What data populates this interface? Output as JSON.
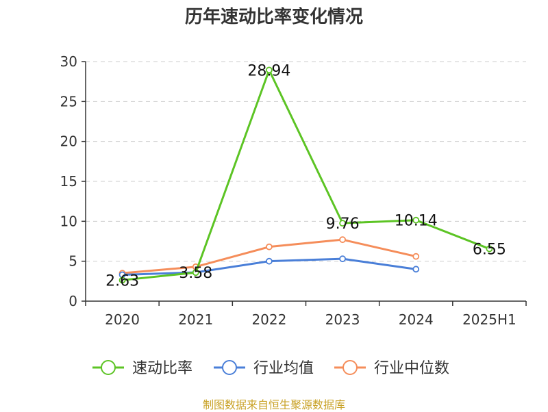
{
  "title": "历年速动比率变化情况",
  "source_note": "制图数据来自恒生聚源数据库",
  "chart_data": {
    "type": "line",
    "categories": [
      "2020",
      "2021",
      "2022",
      "2023",
      "2024",
      "2025H1"
    ],
    "ylim": [
      0,
      30
    ],
    "yticks": [
      0,
      5,
      10,
      15,
      20,
      25,
      30
    ],
    "grid": true,
    "legend_position": "bottom",
    "series": [
      {
        "name": "速动比率",
        "color": "#5cc424",
        "values": [
          2.63,
          3.58,
          28.94,
          9.76,
          10.14,
          6.55
        ],
        "labels": [
          "2.63",
          "3.58",
          "28.94",
          "9.76",
          "10.14",
          "6.55"
        ]
      },
      {
        "name": "行业均值",
        "color": "#4a7fd8",
        "values": [
          3.3,
          3.6,
          5.0,
          5.3,
          4.0,
          null
        ]
      },
      {
        "name": "行业中位数",
        "color": "#f58d5a",
        "values": [
          3.5,
          4.3,
          6.8,
          7.7,
          5.6,
          null
        ]
      }
    ]
  }
}
